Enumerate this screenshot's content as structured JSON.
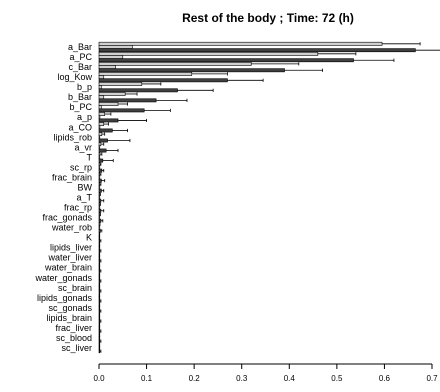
{
  "chart_data": {
    "type": "bar",
    "title": "Rest of the body ; Time: 72 (h)",
    "xlabel": "",
    "ylabel": "",
    "xlim": [
      0,
      0.7
    ],
    "xticks": [
      "0.0",
      "0.1",
      "0.2",
      "0.3",
      "0.4",
      "0.5",
      "0.6",
      "0.7"
    ],
    "grid": false,
    "legend": "none",
    "colors": {
      "light": "#d0d0d0",
      "dark": "#404040"
    },
    "categories": [
      "a_Bar",
      "a_PC",
      "c_Bar",
      "log_Kow",
      "b_p",
      "b_Bar",
      "b_PC",
      "a_p",
      "a_CO",
      "lipids_rob",
      "a_vr",
      "T",
      "sc_rp",
      "frac_brain",
      "BW",
      "a_T",
      "frac_rp",
      "frac_gonads",
      "water_rob",
      "K",
      "lipids_liver",
      "water_liver",
      "water_brain",
      "water_gonads",
      "sc_brain",
      "lipids_gonads",
      "sc_gonads",
      "lipids_brain",
      "frac_liver",
      "sc_blood",
      "sc_liver"
    ],
    "series": [
      {
        "values": [
          0.595,
          0.46,
          0.32,
          0.195,
          0.09,
          0.055,
          0.04,
          0.012,
          0.01,
          0.006,
          0.004,
          0.002,
          0.002,
          0.001,
          0.001,
          0.001,
          0.001,
          0.001,
          0.001,
          0,
          0,
          0,
          0,
          0,
          0,
          0,
          0,
          0,
          0,
          0,
          0
        ],
        "error": [
          0.675,
          0.54,
          0.42,
          0.27,
          0.13,
          0.08,
          0.06,
          0.025,
          0.02,
          0.012,
          0.01,
          0.006,
          0.004,
          0.004,
          0.004,
          0.003,
          0.003,
          0.003,
          0.002,
          0.001,
          0.001,
          0.001,
          0.001,
          0.001,
          0.001,
          0.001,
          0.001,
          0.001,
          0.001,
          0.001,
          0.001
        ]
      },
      {
        "values": [
          0.07,
          0.05,
          0.035,
          0.01,
          0.005,
          0.01,
          0.005,
          0.002,
          0.002,
          0.001,
          0.001,
          0.001,
          0.001,
          0.001,
          0.001,
          0.001,
          0.001,
          0.001,
          0.001,
          0,
          0,
          0,
          0,
          0,
          0,
          0,
          0,
          0,
          0,
          0,
          0
        ],
        "error": [
          0.03,
          0.02,
          0.015,
          0.005,
          0.003,
          0.005,
          0.003,
          0.001,
          0.001,
          0.001,
          0.001,
          0.001,
          0.001,
          0.001,
          0.001,
          0.001,
          0.001,
          0.001,
          0.001,
          0.001,
          0.001,
          0.001,
          0.001,
          0.001,
          0.001,
          0.001,
          0.001,
          0.001,
          0.001,
          0.001,
          0.001
        ]
      },
      {
        "values": [
          0.665,
          0.535,
          0.39,
          0.27,
          0.165,
          0.12,
          0.095,
          0.04,
          0.028,
          0.018,
          0.015,
          0.008,
          0.006,
          0.005,
          0.005,
          0.004,
          0.004,
          0.004,
          0.003,
          0.001,
          0.001,
          0.001,
          0.001,
          0.001,
          0.001,
          0.001,
          0.001,
          0.001,
          0.001,
          0.001,
          0.001
        ],
        "error": [
          0.72,
          0.62,
          0.47,
          0.345,
          0.24,
          0.185,
          0.15,
          0.1,
          0.06,
          0.065,
          0.04,
          0.03,
          0.01,
          0.012,
          0.01,
          0.01,
          0.01,
          0.008,
          0.006,
          0.004,
          0.004,
          0.004,
          0.004,
          0.004,
          0.004,
          0.004,
          0.004,
          0.004,
          0.004,
          0.004,
          0.004
        ]
      }
    ]
  }
}
